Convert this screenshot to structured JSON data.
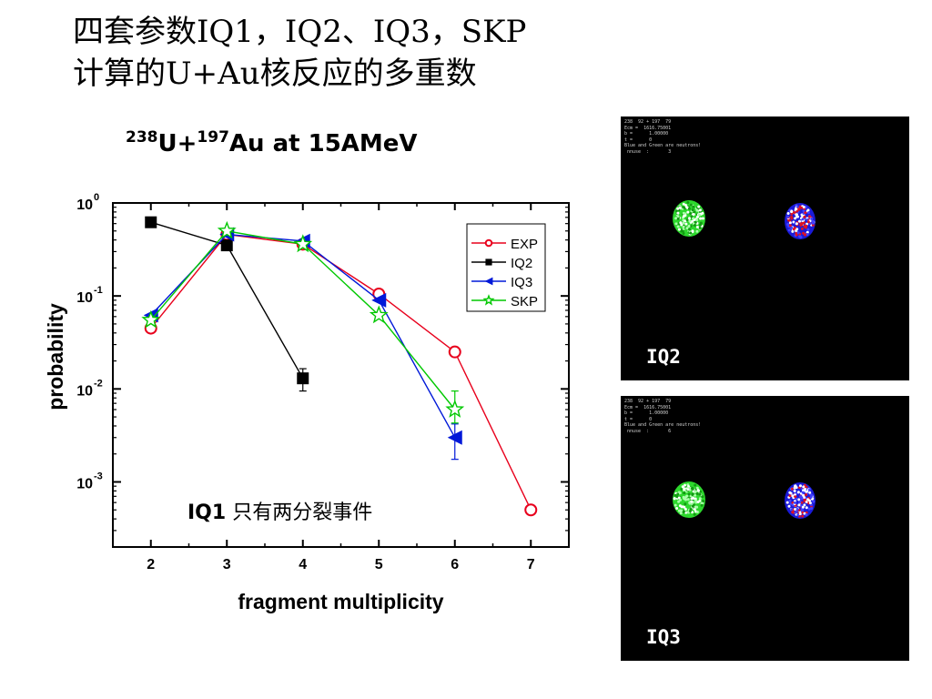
{
  "slide": {
    "title_line1": "四套参数IQ1，IQ2、IQ3，SKP",
    "title_line2": "计算的U+Au核反应的多重数"
  },
  "chart_data": {
    "type": "line",
    "title": {
      "prefix1": "238",
      "text1": "U+",
      "prefix2": "197",
      "text2": "Au at 15AMeV"
    },
    "xlabel": "fragment multiplicity",
    "ylabel": "probability",
    "xlim": [
      1.5,
      7.5
    ],
    "ylim_log10": [
      -3.7,
      0.0
    ],
    "y_scale": "log",
    "x_ticks": [
      2,
      3,
      4,
      5,
      6,
      7
    ],
    "y_ticks": [
      {
        "value": 1,
        "base": "10",
        "exp": "0"
      },
      {
        "value": 0.1,
        "base": "10",
        "exp": "-1"
      },
      {
        "value": 0.01,
        "base": "10",
        "exp": "-2"
      },
      {
        "value": 0.001,
        "base": "10",
        "exp": "-3"
      }
    ],
    "grid": false,
    "legend_position": "top-right",
    "series": [
      {
        "name": "EXP",
        "color": "#e8001c",
        "marker": "circle-open",
        "x": [
          2,
          3,
          4,
          5,
          6,
          7
        ],
        "y": [
          0.045,
          0.46,
          0.36,
          0.105,
          0.025,
          0.0005
        ]
      },
      {
        "name": "IQ2",
        "color": "#000000",
        "marker": "square-filled",
        "x": [
          2,
          3,
          4
        ],
        "y": [
          0.62,
          0.35,
          0.013
        ],
        "errors": [
          {
            "x": 4,
            "low": 0.0095,
            "high": 0.0165
          }
        ]
      },
      {
        "name": "IQ3",
        "color": "#0018d8",
        "marker": "triangle-left-filled",
        "x": [
          2,
          3,
          4,
          5,
          6
        ],
        "y": [
          0.062,
          0.46,
          0.39,
          0.09,
          0.003
        ],
        "errors": [
          {
            "x": 6,
            "low": 0.00175,
            "high": 0.0042
          }
        ]
      },
      {
        "name": "SKP",
        "color": "#00c800",
        "marker": "star-open",
        "x": [
          2,
          3,
          4,
          5,
          6
        ],
        "y": [
          0.055,
          0.5,
          0.36,
          0.062,
          0.006
        ],
        "errors": [
          {
            "x": 6,
            "low": 0.0043,
            "high": 0.0095
          }
        ]
      }
    ],
    "annotation": {
      "bold": "IQ1",
      "text": " 只有两分裂事件"
    }
  },
  "panels": [
    {
      "id": "iq2",
      "label": "IQ2",
      "header_lines": [
        "238  92 + 197  79",
        "Ecm =  1616.75001",
        "b =      1.00000",
        "t =      0",
        "Blue and Green are neutrons!",
        " nnuse  :       3"
      ],
      "blob_colors": [
        "#2dd82d",
        "#1a1ad8"
      ]
    },
    {
      "id": "iq3",
      "label": "IQ3",
      "header_lines": [
        "238  92 + 197  79",
        "Ecm =  1616.75001",
        "b =      1.00000",
        "t =      0",
        "Blue and Green are neutrons!",
        " nnuse  :       6"
      ],
      "blob_colors": [
        "#2dd82d",
        "#1a1ad8"
      ]
    }
  ]
}
